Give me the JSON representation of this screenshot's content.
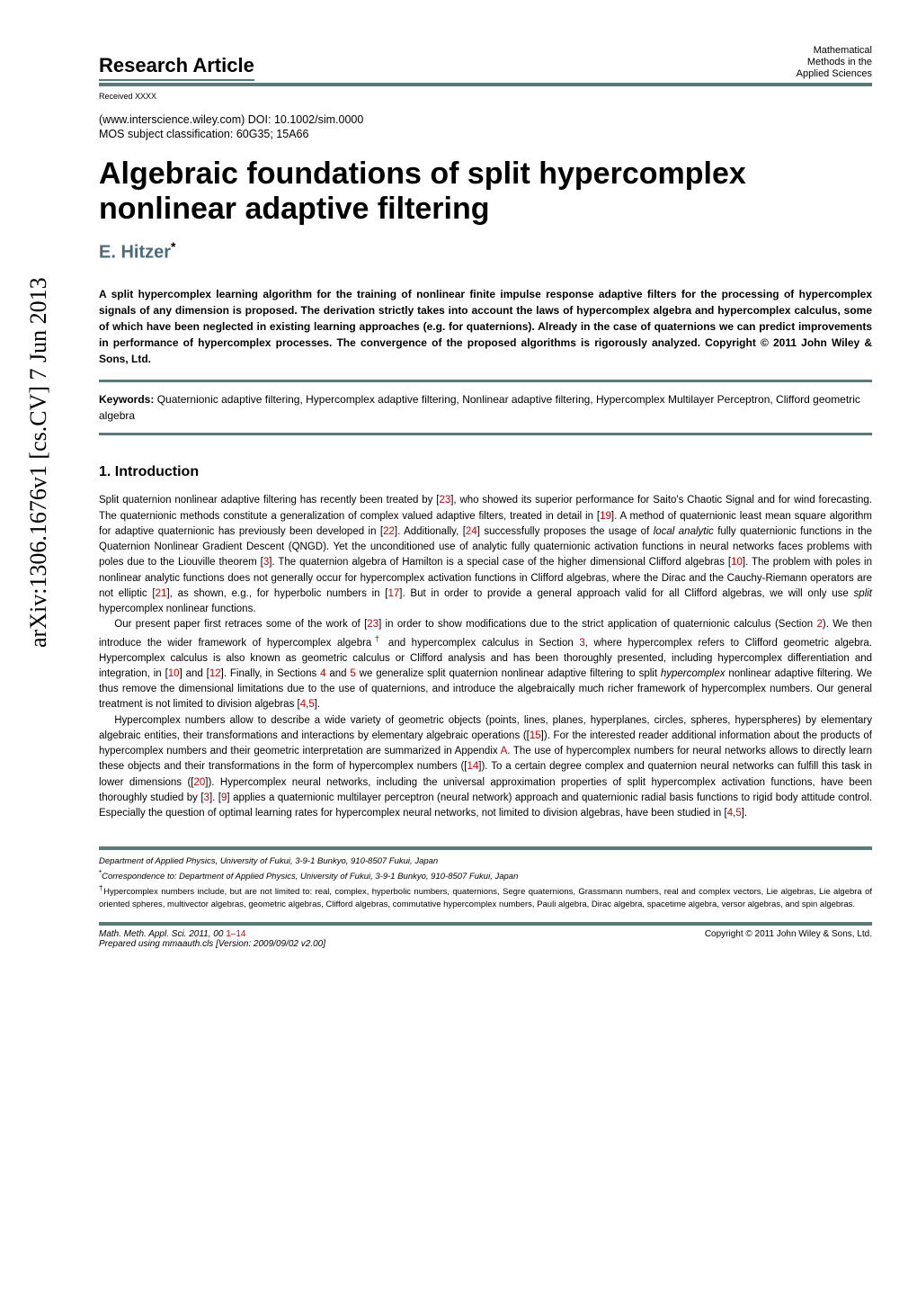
{
  "arxiv_label": "arXiv:1306.1676v1  [cs.CV]  7 Jun 2013",
  "header": {
    "article_type": "Research Article",
    "journal_line1": "Mathematical",
    "journal_line2": "Methods in the",
    "journal_line3": "Applied Sciences",
    "received": "Received XXXX",
    "doi": "(www.interscience.wiley.com) DOI: 10.1002/sim.0000",
    "mos": "MOS subject classification: 60G35; 15A66"
  },
  "title": "Algebraic foundations of split hypercomplex nonlinear adaptive filtering",
  "author": "E. Hitzer",
  "author_sup": "*",
  "abstract": "A split hypercomplex learning algorithm for the training of nonlinear finite impulse response adaptive filters for the processing of hypercomplex signals of any dimension is proposed. The derivation strictly takes into account the laws of hypercomplex algebra and hypercomplex calculus, some of which have been neglected in existing learning approaches (e.g. for quaternions). Already in the case of quaternions we can predict improvements in performance of hypercomplex processes. The convergence of the proposed algorithms is rigorously analyzed. Copyright © 2011 John Wiley & Sons, Ltd.",
  "keywords_label": "Keywords:",
  "keywords_text": "Quaternionic adaptive filtering, Hypercomplex adaptive filtering, Nonlinear adaptive filtering, Hypercomplex Multilayer Perceptron, Clifford geometric algebra",
  "section1_title": "1. Introduction",
  "para1_pre": "Split quaternion nonlinear adaptive filtering has recently been treated by [",
  "ref23": "23",
  "para1_a": "], who showed its superior performance for Saito's Chaotic Signal and for wind forecasting. The quaternionic methods constitute a generalization of complex valued adaptive filters, treated in detail in [",
  "ref19": "19",
  "para1_b": "]. A method of quaternionic least mean square algorithm for adaptive quaternionic has previously been developed in [",
  "ref22": "22",
  "para1_c": "]. Additionally, [",
  "ref24": "24",
  "para1_d": "] successfully proposes the usage of ",
  "para1_d_ital": "local analytic",
  "para1_e": " fully quaternionic functions in the Quaternion Nonlinear Gradient Descent (QNGD). Yet the unconditioned use of analytic fully quaternionic activation functions in neural networks faces problems with poles due to the Liouville theorem [",
  "ref3": "3",
  "para1_f": "]. The quaternion algebra of Hamilton is a special case of the higher dimensional Clifford algebras [",
  "ref10": "10",
  "para1_g": "]. The problem with poles in nonlinear analytic functions does not generally occur for hypercomplex activation functions in Clifford algebras, where the Dirac and the Cauchy-Riemann operators are not elliptic [",
  "ref21": "21",
  "para1_h": "], as shown, e.g., for hyperbolic numbers in [",
  "ref17": "17",
  "para1_i": "]. But in order to provide a general approach valid for all Clifford algebras, we will only use ",
  "para1_i_ital": "split",
  "para1_j": " hypercomplex nonlinear functions.",
  "para2_a": "Our present paper first retraces some of the work of [",
  "para2_b": "] in order to show modifications due to the strict application of quaternionic calculus (Section ",
  "ref_sec2": "2",
  "para2_c": "). We then introduce the wider framework of hypercomplex algebra",
  "dagger": "†",
  "para2_d": " and hypercomplex calculus in Section ",
  "ref_sec3": "3",
  "para2_e": ", where hypercomplex refers to Clifford geometric algebra. Hypercomplex calculus is also known as geometric calculus or Clifford analysis and has been thoroughly presented, including hypercomplex differentiation and integration, in [",
  "para2_f": "] and [",
  "ref12": "12",
  "para2_g": "]. Finally, in Sections ",
  "ref_sec4": "4",
  "para2_h": " and ",
  "ref_sec5": "5",
  "para2_i": " we generalize split quaternion nonlinear adaptive filtering to split ",
  "para2_i_ital": "hypercomplex",
  "para2_j": " nonlinear adaptive filtering. We thus remove the dimensional limitations due to the use of quaternions, and introduce the algebraically much richer framework of hypercomplex numbers. Our general treatment is not limited to division algebras [",
  "ref4": "4",
  "ref5": "5",
  "para2_k": "].",
  "para3_a": "Hypercomplex numbers allow to describe a wide variety of geometric objects (points, lines, planes, hyperplanes, circles, spheres, hyperspheres) by elementary algebraic entities, their transformations and interactions by elementary algebraic operations ([",
  "ref15": "15",
  "para3_b": "]). For the interested reader additional information about the products of hypercomplex numbers and their geometric interpretation are summarized in Appendix ",
  "refA": "A",
  "para3_c": ". The use of hypercomplex numbers for neural networks allows to directly learn these objects and their transformations in the form of hypercomplex numbers ([",
  "ref14": "14",
  "para3_d": "]). To a certain degree complex and quaternion neural networks can fulfill this task in lower dimensions ([",
  "ref20": "20",
  "para3_e": "]). Hypercomplex neural networks, including the universal approximation properties of split hypercomplex activation functions, have been thoroughly studied by [",
  "para3_f": "]. [",
  "ref9": "9",
  "para3_g": "] applies a quaternionic multilayer perceptron (neural network) approach and quaternionic radial basis functions to rigid body attitude control. Especially the question of optimal learning rates for hypercomplex neural networks, not limited to division algebras, have been studied in [",
  "para3_h": "].",
  "affil": "Department of Applied Physics, University of Fukui, 3-9-1 Bunkyo, 910-8507 Fukui, Japan",
  "corresp_label": "*",
  "corresp": "Correspondence to: Department of Applied Physics, University of Fukui, 3-9-1 Bunkyo, 910-8507 Fukui, Japan",
  "footnote_label": "†",
  "footnote": "Hypercomplex numbers include, but are not limited to: real, complex, hyperbolic numbers, quaternions, Segre quaternions, Grassmann numbers, real and complex vectors, Lie algebras, Lie algebra of oriented spheres, multivector algebras, geometric algebras, Clifford algebras, commutative hypercomplex numbers, Pauli algebra, Dirac algebra, spacetime algebra, versor algebras, and spin algebras.",
  "bottom": {
    "journal_abbrev": "Math. Meth. Appl. Sci.",
    "year_vol": " 2011, 00 ",
    "pages": "1–14",
    "prepared": "Prepared using mmaauth.cls [Version: 2009/09/02 v2.00]",
    "copyright": "Copyright © 2011 John Wiley & Sons, Ltd."
  },
  "colors": {
    "rule": "#5a7a7a",
    "author": "#4d6a7a",
    "ref": "#cc0000",
    "text": "#000000",
    "bg": "#ffffff"
  }
}
